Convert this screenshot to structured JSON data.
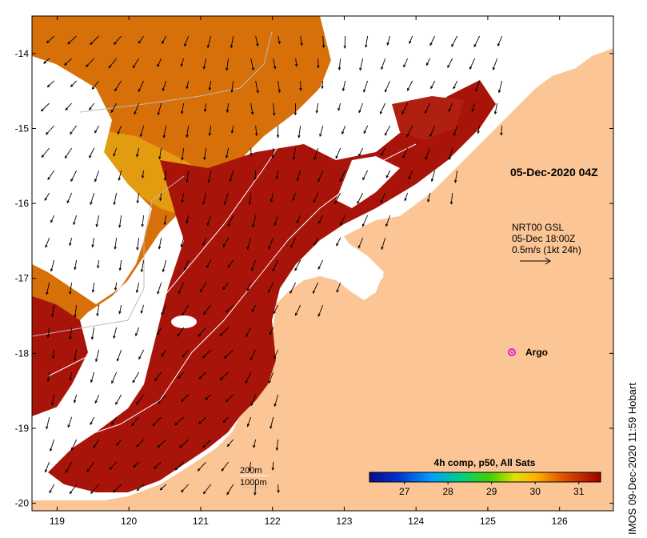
{
  "map": {
    "lon_range": [
      118.65,
      126.75
    ],
    "lat_range": [
      -20.1,
      -13.5
    ],
    "x_ticks": [
      "119",
      "120",
      "121",
      "122",
      "123",
      "124",
      "125",
      "126"
    ],
    "y_ticks": [
      "-14",
      "-15",
      "-16",
      "-17",
      "-18",
      "-19",
      "-20"
    ],
    "timestamp_label": "05-Dec-2020 04Z",
    "current_source": "NRT00 GSL",
    "current_time": "05-Dec 18:00Z",
    "current_scale": "0.5m/s (1kt 24h)",
    "argo_label": "Argo",
    "isobaths": [
      "200m",
      "1000m"
    ],
    "colorbar": {
      "title": "4h comp, p50, All Sats",
      "ticks": [
        "27",
        "28",
        "29",
        "30",
        "31"
      ],
      "range": [
        26.2,
        31.5
      ]
    },
    "credit": "IMOS 09-Dec-2020 11:59 Hobart",
    "colors": {
      "land": "#FBC595",
      "sst_hot": "#A70F00",
      "sst_warm": "#D45A00",
      "sst_mid": "#E6A000",
      "cloud": "#FFFFFF",
      "argo": "#E020E0"
    }
  }
}
